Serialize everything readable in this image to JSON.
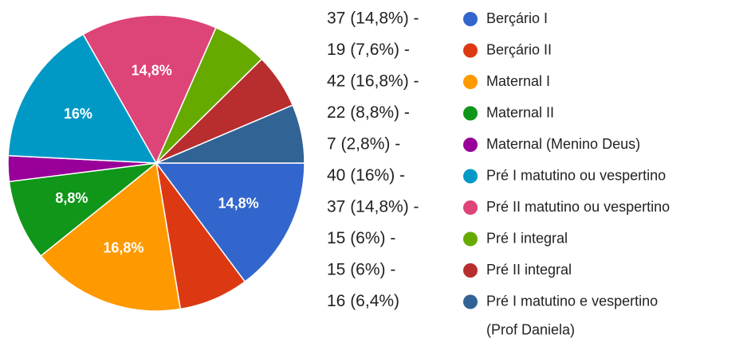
{
  "chart_data": {
    "type": "pie",
    "categories": [
      "Berçário I",
      "Berçário II",
      "Maternal I",
      "Maternal II",
      "Maternal (Menino Deus)",
      "Pré I matutino ou vespertino",
      "Pré II matutino ou vespertino",
      "Pré I integral",
      "Pré II integral",
      "Pré I matutino e vespertino\n(Prof Daniela)"
    ],
    "values": [
      37,
      19,
      42,
      22,
      7,
      40,
      37,
      15,
      15,
      16
    ],
    "value_labels": [
      "37 (14,8%) -",
      "19 (7,6%) -",
      "42 (16,8%) -",
      "22 (8,8%) -",
      "7 (2,8%) -",
      "40 (16%) -",
      "37 (14,8%) -",
      "15 (6%) -",
      "15 (6%) -",
      "16 (6,4%)"
    ],
    "slice_labels": [
      "14,8%",
      null,
      "16,8%",
      "8,8%",
      null,
      "16%",
      "14,8%",
      null,
      null,
      null
    ],
    "colors": [
      "#3366cc",
      "#dc3912",
      "#ff9900",
      "#109618",
      "#990099",
      "#0099c6",
      "#dd4477",
      "#66aa00",
      "#b82e2e",
      "#316395"
    ]
  }
}
